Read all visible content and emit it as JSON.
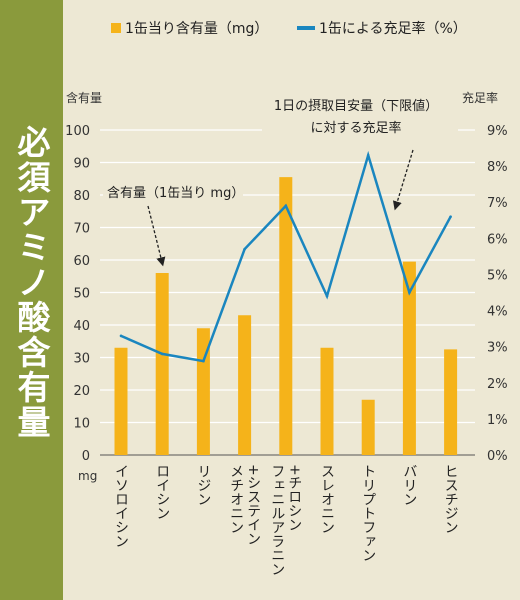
{
  "sidebar": {
    "title": "必須アミノ酸含有量"
  },
  "chart_data": {
    "type": "bar",
    "categories": [
      "イソロイシン",
      "ロイシン",
      "リジン",
      "メチオニン\n+システイン",
      "フェニルアラニン\n+チロシン",
      "スレオニン",
      "トリプトファン",
      "バリン",
      "ヒスチジン"
    ],
    "series": [
      {
        "name": "1缶当り含有量（mg）",
        "type": "bar",
        "axis": "left",
        "color": "#f5b31a",
        "values": [
          33,
          56,
          39,
          43,
          85.5,
          33,
          17,
          59.5,
          32.5
        ]
      },
      {
        "name": "1缶による充足率（%）",
        "type": "line",
        "axis": "right",
        "color": "#1a86bf",
        "values": [
          3.3,
          2.8,
          2.6,
          5.7,
          6.9,
          4.4,
          8.3,
          4.5,
          6.6
        ]
      }
    ],
    "ylabel_left": "含有量",
    "ylabel_right": "充足率",
    "y_unit_left": "mg",
    "ylim_left": [
      0,
      100
    ],
    "yticks_left": [
      "0",
      "10",
      "20",
      "30",
      "40",
      "50",
      "60",
      "70",
      "80",
      "90",
      "100"
    ],
    "ylim_right": [
      0,
      9
    ],
    "yticks_right": [
      "0%",
      "1%",
      "2%",
      "3%",
      "4%",
      "5%",
      "6%",
      "7%",
      "8%",
      "9%"
    ],
    "annotations": [
      {
        "text": "含有量（1缶当り mg）"
      },
      {
        "text": "1日の摂取目安量（下限値）\nに対する充足率"
      }
    ],
    "legend": "top",
    "grid": "horizontal"
  }
}
